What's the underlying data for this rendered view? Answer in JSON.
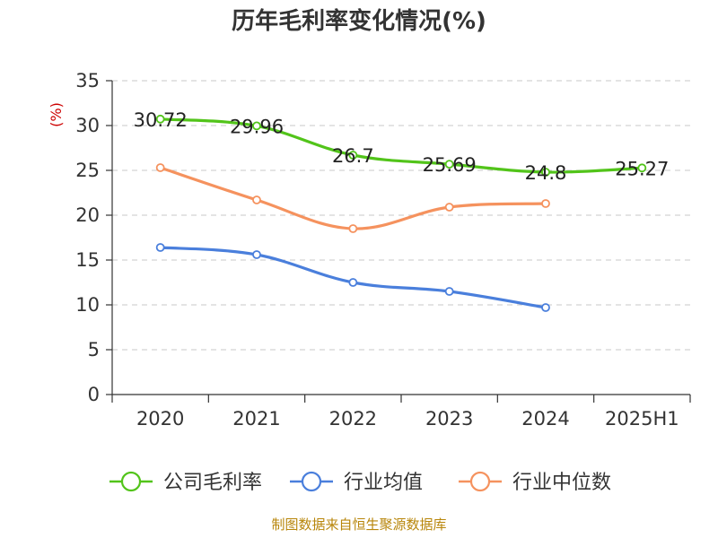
{
  "chart_data": {
    "type": "line",
    "title": "历年毛利率变化情况(%)",
    "ylabel": "(%)",
    "categories": [
      "2020",
      "2021",
      "2022",
      "2023",
      "2024",
      "2025H1"
    ],
    "ylim": [
      0,
      35
    ],
    "yticks": [
      0,
      5,
      10,
      15,
      20,
      25,
      30,
      35
    ],
    "grid": true,
    "legend_position": "bottom",
    "series": [
      {
        "name": "公司毛利率",
        "color": "#52c41a",
        "values": [
          30.72,
          29.96,
          26.7,
          25.69,
          24.8,
          25.27
        ],
        "labels": [
          "30.72",
          "29.96",
          "26.7",
          "25.69",
          "24.8",
          "25.27"
        ]
      },
      {
        "name": "行业均值",
        "color": "#4a7fdc",
        "values": [
          16.4,
          15.6,
          12.5,
          11.5,
          9.7,
          null
        ]
      },
      {
        "name": "行业中位数",
        "color": "#f5925e",
        "values": [
          25.3,
          21.7,
          18.5,
          20.9,
          21.3,
          null
        ]
      }
    ]
  },
  "footer": {
    "source": "制图数据来自恒生聚源数据库"
  }
}
